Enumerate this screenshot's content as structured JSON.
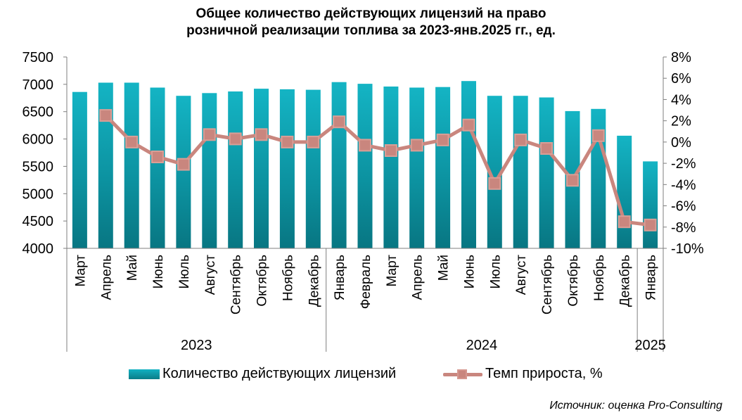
{
  "chart_data": {
    "type": "bar+line",
    "title_lines": [
      "Общее количество действующих лицензий на право",
      "розничной реализации топлива за 2023-янв.2025 гг., ед."
    ],
    "categories": [
      "Март",
      "Апрель",
      "Май",
      "Июнь",
      "Июль",
      "Август",
      "Сентябрь",
      "Октябрь",
      "Ноябрь",
      "Декабрь",
      "Январь",
      "Февраль",
      "Март",
      "Апрель",
      "Май",
      "Июнь",
      "Июль",
      "Август",
      "Сентябрь",
      "Октябрь",
      "Ноябрь",
      "Декабрь",
      "Январь"
    ],
    "year_groups": [
      {
        "label": "2023",
        "count": 10
      },
      {
        "label": "2024",
        "count": 12
      },
      {
        "label": "2025",
        "count": 1
      }
    ],
    "series": [
      {
        "name": "Количество действующих лицензий",
        "type": "bar",
        "axis": "left",
        "color": "#0e98a6",
        "values": [
          6860,
          7030,
          7030,
          6940,
          6790,
          6840,
          6870,
          6920,
          6910,
          6900,
          7040,
          7010,
          6960,
          6940,
          6950,
          7060,
          6790,
          6790,
          6760,
          6510,
          6550,
          6060,
          5590
        ]
      },
      {
        "name": "Темп прироста, %",
        "type": "line",
        "axis": "right",
        "color": "#c9867e",
        "values": [
          null,
          2.5,
          0.0,
          -1.4,
          -2.1,
          0.7,
          0.3,
          0.7,
          0.0,
          0.0,
          1.9,
          -0.3,
          -0.8,
          -0.3,
          0.2,
          1.6,
          -3.9,
          0.2,
          -0.6,
          -3.6,
          0.6,
          -7.5,
          -7.8
        ]
      }
    ],
    "left_axis": {
      "min": 4000,
      "max": 7500,
      "step": 500,
      "ticks": [
        "4000",
        "4500",
        "5000",
        "5500",
        "6000",
        "6500",
        "7000",
        "7500"
      ]
    },
    "right_axis": {
      "min": -10,
      "max": 8,
      "step": 2,
      "ticks": [
        "-10%",
        "-8%",
        "-6%",
        "-4%",
        "-2%",
        "0%",
        "2%",
        "4%",
        "6%",
        "8%"
      ]
    },
    "legend_position": "bottom",
    "source": "Источник: оценка Pro-Consulting"
  }
}
